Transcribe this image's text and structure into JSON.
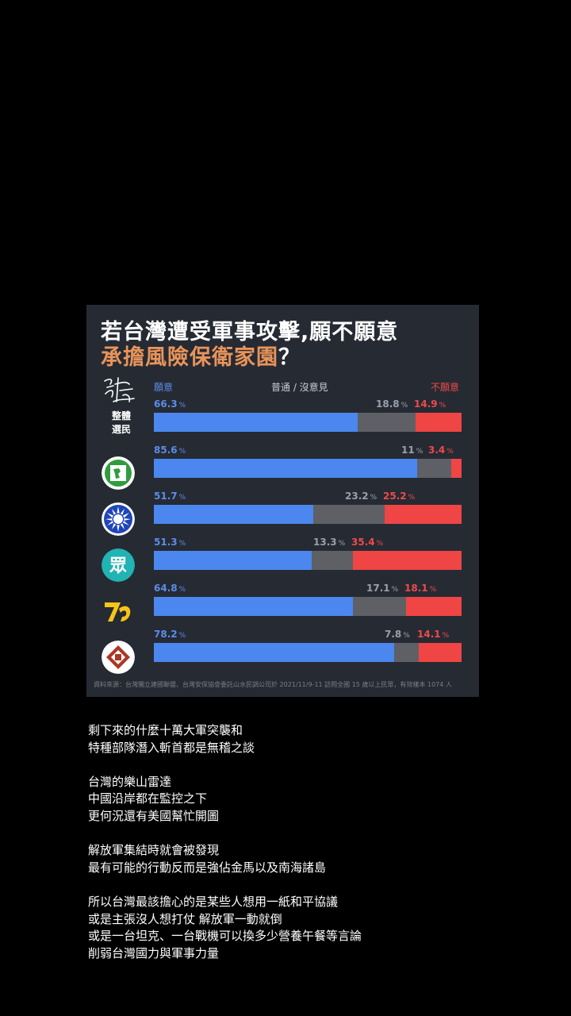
{
  "chart_data": {
    "type": "bar",
    "stacked": true,
    "orientation": "horizontal",
    "title": "若台灣遭受軍事攻擊,願不願意",
    "subtitle": "承擔風險保衛家園",
    "subtitle_mark": "？",
    "header": {
      "yes": "願意",
      "neutral": "普通 / 沒意見",
      "no": "不願意"
    },
    "groups": [
      {
        "label_lines": [
          "整體",
          "選民"
        ],
        "icon": "signature-icon",
        "values": [
          66.3,
          18.8,
          14.9
        ]
      },
      {
        "label_lines": [],
        "icon": "dpp-logo-icon",
        "values": [
          85.6,
          11,
          3.4
        ]
      },
      {
        "label_lines": [],
        "icon": "kmt-sun-logo-icon",
        "values": [
          51.7,
          23.2,
          25.2
        ]
      },
      {
        "label_lines": [],
        "icon": "tpp-logo-icon",
        "values": [
          51.3,
          13.3,
          35.4
        ]
      },
      {
        "label_lines": [],
        "icon": "npp-logo-icon",
        "values": [
          64.8,
          17.1,
          18.1
        ]
      },
      {
        "label_lines": [],
        "icon": "tsp-logo-icon",
        "values": [
          78.2,
          7.8,
          14.1
        ]
      }
    ],
    "value_labels": [
      [
        "66.3",
        "18.8",
        "14.9"
      ],
      [
        "85.6",
        "11",
        "3.4"
      ],
      [
        "51.7",
        "23.2",
        "25.2"
      ],
      [
        "51.3",
        "13.3",
        "35.4"
      ],
      [
        "64.8",
        "17.1",
        "18.1"
      ],
      [
        "78.2",
        "7.8",
        "14.1"
      ]
    ],
    "unit": "%",
    "xlim": [
      0,
      100
    ],
    "colors": {
      "yes": "#4b87ef",
      "neutral": "#5e6066",
      "no": "#ef4545"
    },
    "source": "資料來源：台灣獨立建國聯盟、台灣安保協會委託山水民調公司於 2021/11/9-11 訪問全國 15 歲以上民眾，有效樣本 1074 人"
  },
  "post": {
    "paragraphs": [
      [
        "剩下來的什麼十萬大軍突襲和",
        "特種部隊潛入斬首都是無稽之談"
      ],
      [
        "台灣的樂山雷達",
        "中國沿岸都在監控之下",
        "更何況還有美國幫忙開圖"
      ],
      [
        "解放軍集結時就會被發現",
        "最有可能的行動反而是強佔金馬以及南海諸島"
      ],
      [
        "所以台灣最該擔心的是某些人想用一紙和平協議",
        "或是主張沒人想打仗 解放軍一動就倒",
        "或是一台坦克、一台戰機可以換多少營養午餐等言論",
        "削弱台灣國力與軍事力量"
      ]
    ]
  }
}
